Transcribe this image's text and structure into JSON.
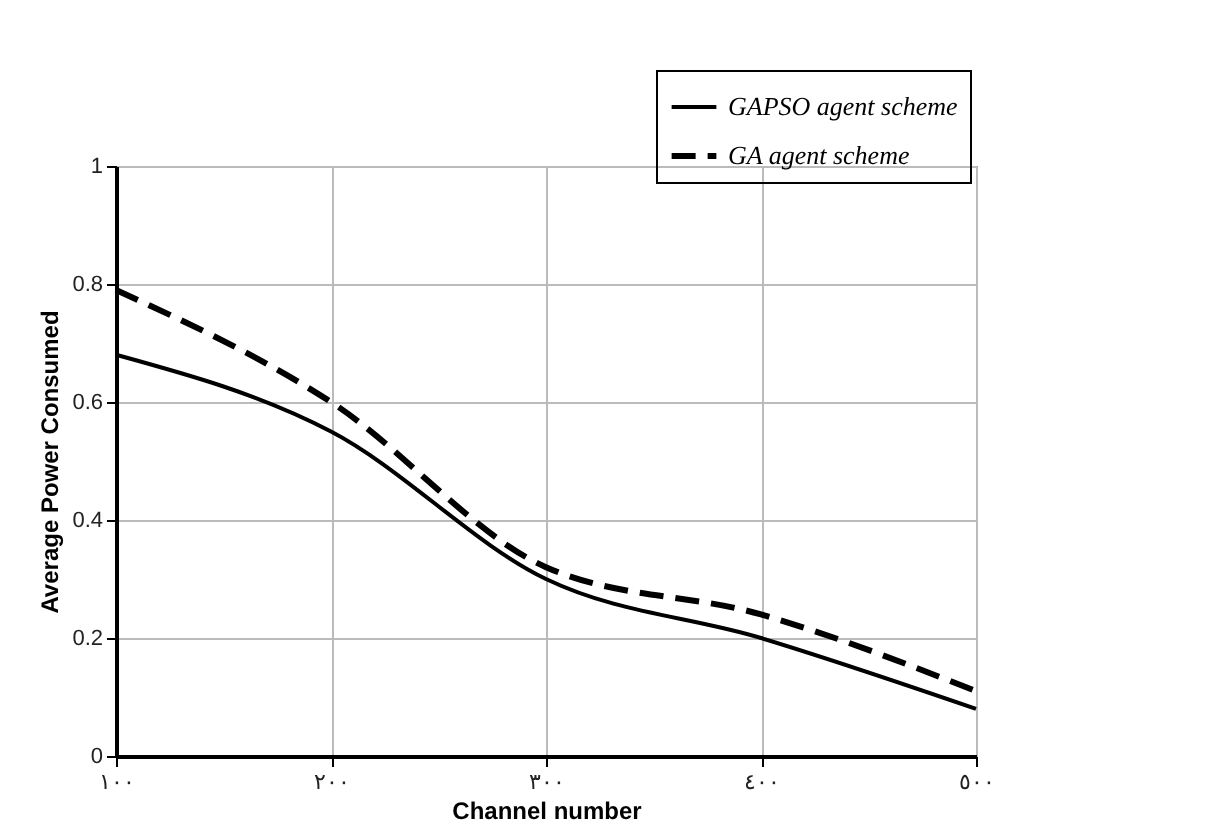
{
  "chart_data": {
    "type": "line",
    "xlabel": "Channel number",
    "ylabel": "Average Power Consumed",
    "categories": [
      "١٠٠",
      "٢٠٠",
      "٣٠٠",
      "٤٠٠",
      "٥٠٠"
    ],
    "series": [
      {
        "name": "GAPSO agent scheme",
        "color": "#000000",
        "line_style": "solid",
        "values": [
          0.68,
          0.55,
          0.3,
          0.2,
          0.08
        ]
      },
      {
        "name": "GA agent scheme",
        "color": "#000000",
        "line_style": "dashed",
        "values": [
          0.79,
          0.6,
          0.32,
          0.24,
          0.11
        ]
      }
    ],
    "ylim": [
      0,
      1
    ],
    "yticks": [
      0,
      0.2,
      0.4,
      0.6,
      0.8,
      1
    ],
    "grid": true,
    "legend": "top right",
    "marker": "none"
  }
}
